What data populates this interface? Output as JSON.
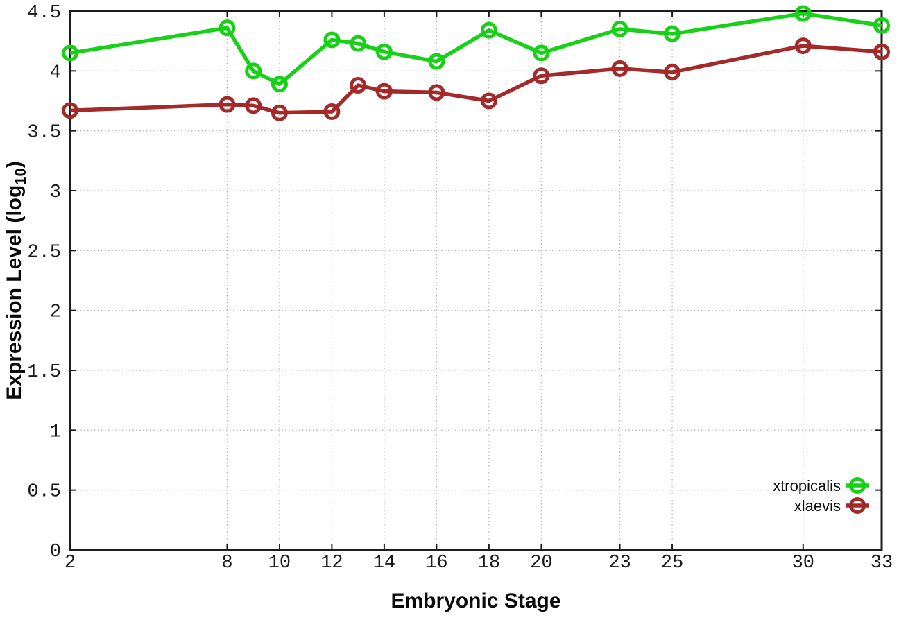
{
  "chart_data": {
    "type": "line",
    "title": "",
    "xlabel": "Embryonic Stage",
    "ylabel": "Expression Level (log10)",
    "ylabel_parts": {
      "main": "Expression Level (log",
      "sub": "10",
      "end": ")"
    },
    "x": [
      2,
      8,
      9,
      10,
      12,
      13,
      14,
      16,
      18,
      20,
      23,
      25,
      30,
      33
    ],
    "series": [
      {
        "name": "xtropicalis",
        "color": "#17d117",
        "values": [
          4.15,
          4.36,
          4.0,
          3.89,
          4.26,
          4.23,
          4.16,
          4.08,
          4.34,
          4.15,
          4.35,
          4.31,
          4.48,
          4.38
        ]
      },
      {
        "name": "xlaevis",
        "color": "#a42a2a",
        "values": [
          3.67,
          3.72,
          3.71,
          3.65,
          3.66,
          3.88,
          3.83,
          3.82,
          3.75,
          3.96,
          4.02,
          3.99,
          4.21,
          4.16
        ]
      }
    ],
    "xlim": [
      2,
      33
    ],
    "ylim": [
      0,
      4.5
    ],
    "xticks": [
      2,
      8,
      10,
      12,
      14,
      16,
      18,
      20,
      23,
      25,
      30,
      33
    ],
    "yticks": [
      0,
      0.5,
      1,
      1.5,
      2,
      2.5,
      3,
      3.5,
      4,
      4.5
    ],
    "grid": true,
    "legend_position": "inside-bottom-right",
    "legend_entries": [
      "xtropicalis",
      "xlaevis"
    ],
    "style": {
      "background": "#ffffff",
      "grid_color": "#b4b7c0",
      "border_color": "#1c1c1c",
      "text_color": "#1a1a1a",
      "line_width": 5.5,
      "marker": "open-circle",
      "marker_radius": 9.5,
      "marker_stroke": 5
    }
  }
}
